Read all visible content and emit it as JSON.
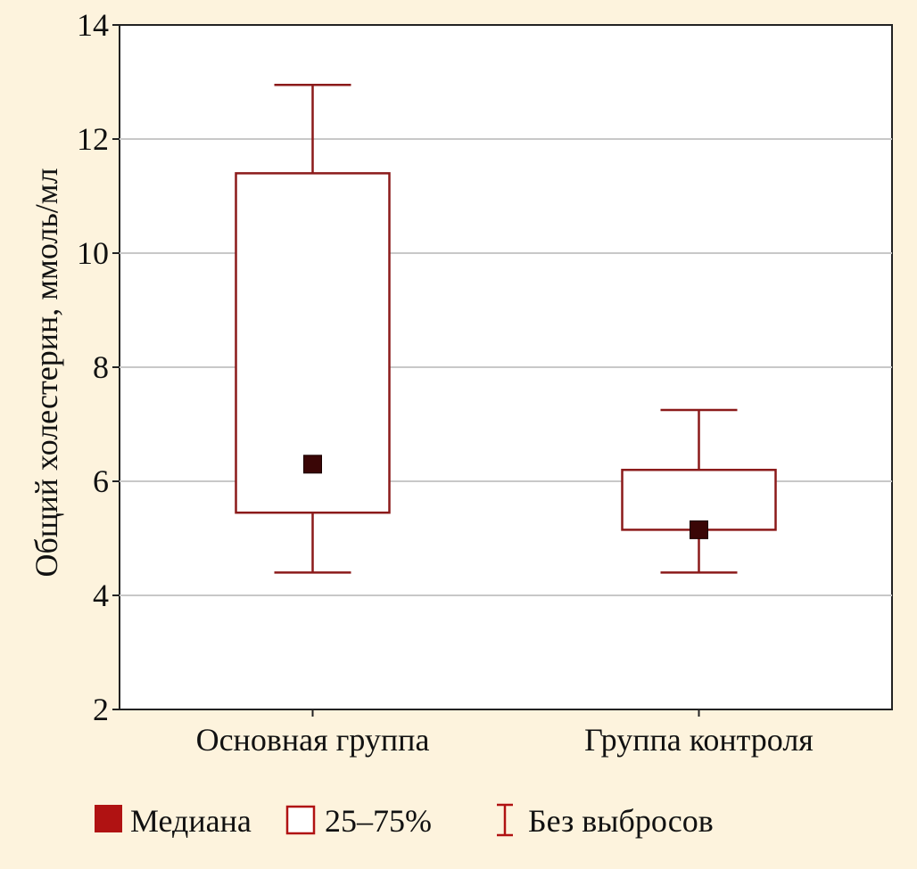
{
  "chart_data": {
    "type": "box",
    "title": "",
    "xlabel": "",
    "ylabel": "Общий холестерин, ммоль/мл",
    "ylim": [
      2,
      14
    ],
    "yticks": [
      2,
      4,
      6,
      8,
      10,
      12,
      14
    ],
    "grid": true,
    "categories": [
      "Основная группа",
      "Группа контроля"
    ],
    "boxes": [
      {
        "category": "Основная группа",
        "min": 4.4,
        "q1": 5.45,
        "median": 6.3,
        "q3": 11.4,
        "max": 12.95
      },
      {
        "category": "Группа контроля",
        "min": 4.4,
        "q1": 5.15,
        "median": 5.15,
        "q3": 6.2,
        "max": 7.25
      }
    ],
    "legend": {
      "position": "bottom",
      "items": [
        {
          "label": "Медиана",
          "symbol": "filled-square"
        },
        {
          "label": "25–75%",
          "symbol": "open-square"
        },
        {
          "label": "Без выбросов",
          "symbol": "whisker"
        }
      ]
    },
    "colors": {
      "box_stroke": "#8b1a1a",
      "median_fill": "#3a0606",
      "legend_fill": "#b01212",
      "grid": "#c8c8c8",
      "background": "#fdf3dd",
      "plot_bg": "#ffffff"
    }
  }
}
